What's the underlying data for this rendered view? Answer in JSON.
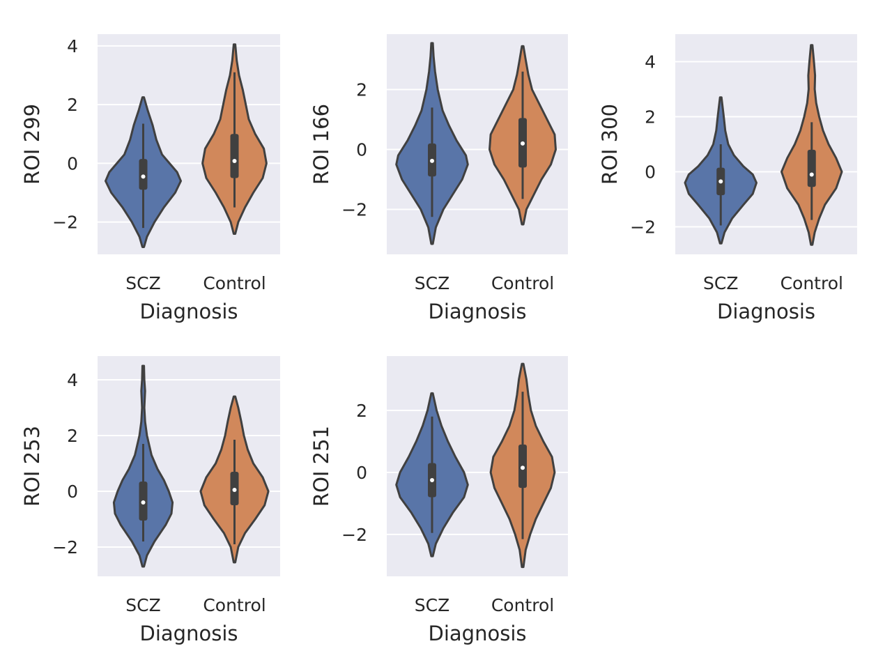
{
  "chart_data": [
    {
      "type": "violin",
      "ylabel": "ROI 299",
      "xlabel": "Diagnosis",
      "categories": [
        "SCZ",
        "Control"
      ],
      "yticks": [
        -2,
        0,
        2,
        4
      ],
      "ylim": [
        -3.1,
        4.4
      ],
      "grid": true,
      "colors": [
        "#5975a8",
        "#d1885b"
      ],
      "violins": [
        {
          "category": "SCZ",
          "min": -2.2,
          "q1": -0.9,
          "median": -0.45,
          "q3": 0.15,
          "max": 1.35,
          "range": [
            -2.85,
            2.25
          ],
          "profile": [
            [
              -2.85,
              0.02
            ],
            [
              -2.5,
              0.1
            ],
            [
              -2.0,
              0.3
            ],
            [
              -1.5,
              0.55
            ],
            [
              -1.0,
              0.85
            ],
            [
              -0.6,
              1.0
            ],
            [
              -0.3,
              0.9
            ],
            [
              0.0,
              0.7
            ],
            [
              0.3,
              0.5
            ],
            [
              0.8,
              0.35
            ],
            [
              1.3,
              0.25
            ],
            [
              1.8,
              0.12
            ],
            [
              2.25,
              0.02
            ]
          ]
        },
        {
          "category": "Control",
          "min": -1.5,
          "q1": -0.5,
          "median": 0.08,
          "q3": 1.0,
          "max": 3.1,
          "range": [
            -2.4,
            4.05
          ],
          "profile": [
            [
              -2.4,
              0.02
            ],
            [
              -2.0,
              0.1
            ],
            [
              -1.5,
              0.28
            ],
            [
              -1.0,
              0.5
            ],
            [
              -0.5,
              0.75
            ],
            [
              0.0,
              0.85
            ],
            [
              0.5,
              0.78
            ],
            [
              1.0,
              0.55
            ],
            [
              1.5,
              0.38
            ],
            [
              2.0,
              0.3
            ],
            [
              2.5,
              0.22
            ],
            [
              3.0,
              0.12
            ],
            [
              3.5,
              0.06
            ],
            [
              4.05,
              0.02
            ]
          ]
        }
      ]
    },
    {
      "type": "violin",
      "ylabel": "ROI 166",
      "xlabel": "Diagnosis",
      "categories": [
        "SCZ",
        "Control"
      ],
      "yticks": [
        -2,
        0,
        2
      ],
      "ylim": [
        -3.5,
        3.85
      ],
      "grid": true,
      "colors": [
        "#5975a8",
        "#d1885b"
      ],
      "violins": [
        {
          "category": "SCZ",
          "min": -2.25,
          "q1": -0.9,
          "median": -0.38,
          "q3": 0.2,
          "max": 1.4,
          "range": [
            -3.15,
            3.55
          ],
          "profile": [
            [
              -3.15,
              0.02
            ],
            [
              -2.6,
              0.1
            ],
            [
              -2.0,
              0.3
            ],
            [
              -1.5,
              0.55
            ],
            [
              -1.0,
              0.8
            ],
            [
              -0.5,
              0.95
            ],
            [
              -0.2,
              0.9
            ],
            [
              0.3,
              0.65
            ],
            [
              0.8,
              0.45
            ],
            [
              1.3,
              0.28
            ],
            [
              2.0,
              0.15
            ],
            [
              2.6,
              0.08
            ],
            [
              3.1,
              0.04
            ],
            [
              3.55,
              0.02
            ]
          ]
        },
        {
          "category": "Control",
          "min": -1.65,
          "q1": -0.6,
          "median": 0.2,
          "q3": 1.05,
          "max": 2.6,
          "range": [
            -2.5,
            3.45
          ],
          "profile": [
            [
              -2.5,
              0.02
            ],
            [
              -2.0,
              0.1
            ],
            [
              -1.5,
              0.3
            ],
            [
              -1.0,
              0.5
            ],
            [
              -0.5,
              0.75
            ],
            [
              0.0,
              0.88
            ],
            [
              0.5,
              0.85
            ],
            [
              1.0,
              0.65
            ],
            [
              1.5,
              0.45
            ],
            [
              2.0,
              0.25
            ],
            [
              2.5,
              0.15
            ],
            [
              3.0,
              0.08
            ],
            [
              3.45,
              0.02
            ]
          ]
        }
      ]
    },
    {
      "type": "violin",
      "ylabel": "ROI 300",
      "xlabel": "Diagnosis",
      "categories": [
        "SCZ",
        "Control"
      ],
      "yticks": [
        -2,
        0,
        2,
        4
      ],
      "ylim": [
        -3.0,
        5.0
      ],
      "grid": true,
      "colors": [
        "#5975a8",
        "#d1885b"
      ],
      "violins": [
        {
          "category": "SCZ",
          "min": -1.95,
          "q1": -0.85,
          "median": -0.35,
          "q3": 0.15,
          "max": 1.0,
          "range": [
            -2.6,
            2.7
          ],
          "profile": [
            [
              -2.6,
              0.02
            ],
            [
              -2.2,
              0.1
            ],
            [
              -1.7,
              0.3
            ],
            [
              -1.2,
              0.6
            ],
            [
              -0.8,
              0.85
            ],
            [
              -0.4,
              0.95
            ],
            [
              -0.1,
              0.85
            ],
            [
              0.2,
              0.6
            ],
            [
              0.6,
              0.35
            ],
            [
              1.0,
              0.2
            ],
            [
              1.5,
              0.12
            ],
            [
              2.0,
              0.08
            ],
            [
              2.7,
              0.02
            ]
          ]
        },
        {
          "category": "Control",
          "min": -1.75,
          "q1": -0.55,
          "median": -0.1,
          "q3": 0.8,
          "max": 1.8,
          "range": [
            -2.65,
            4.6
          ],
          "profile": [
            [
              -2.65,
              0.02
            ],
            [
              -2.2,
              0.08
            ],
            [
              -1.7,
              0.2
            ],
            [
              -1.2,
              0.35
            ],
            [
              -0.6,
              0.65
            ],
            [
              0.0,
              0.8
            ],
            [
              0.5,
              0.65
            ],
            [
              1.0,
              0.45
            ],
            [
              1.5,
              0.3
            ],
            [
              2.0,
              0.2
            ],
            [
              2.5,
              0.12
            ],
            [
              3.0,
              0.08
            ],
            [
              3.5,
              0.09
            ],
            [
              4.0,
              0.06
            ],
            [
              4.6,
              0.02
            ]
          ]
        }
      ]
    },
    {
      "type": "violin",
      "ylabel": "ROI 253",
      "xlabel": "Diagnosis",
      "categories": [
        "SCZ",
        "Control"
      ],
      "yticks": [
        -2,
        0,
        2,
        4
      ],
      "ylim": [
        -3.05,
        4.85
      ],
      "grid": true,
      "colors": [
        "#5975a8",
        "#d1885b"
      ],
      "violins": [
        {
          "category": "SCZ",
          "min": -1.8,
          "q1": -1.05,
          "median": -0.4,
          "q3": 0.35,
          "max": 1.7,
          "range": [
            -2.7,
            4.5
          ],
          "profile": [
            [
              -2.7,
              0.02
            ],
            [
              -2.3,
              0.1
            ],
            [
              -1.8,
              0.3
            ],
            [
              -1.2,
              0.6
            ],
            [
              -0.8,
              0.75
            ],
            [
              -0.4,
              0.78
            ],
            [
              0.0,
              0.68
            ],
            [
              0.4,
              0.55
            ],
            [
              0.8,
              0.38
            ],
            [
              1.3,
              0.22
            ],
            [
              2.0,
              0.1
            ],
            [
              2.5,
              0.05
            ],
            [
              3.0,
              0.03
            ],
            [
              3.6,
              0.05
            ],
            [
              4.0,
              0.03
            ],
            [
              4.5,
              0.02
            ]
          ]
        },
        {
          "category": "Control",
          "min": -1.9,
          "q1": -0.5,
          "median": 0.05,
          "q3": 0.7,
          "max": 1.85,
          "range": [
            -2.55,
            3.4
          ],
          "profile": [
            [
              -2.55,
              0.02
            ],
            [
              -2.0,
              0.1
            ],
            [
              -1.5,
              0.28
            ],
            [
              -1.0,
              0.55
            ],
            [
              -0.5,
              0.8
            ],
            [
              0.0,
              0.9
            ],
            [
              0.5,
              0.75
            ],
            [
              1.0,
              0.5
            ],
            [
              1.5,
              0.35
            ],
            [
              2.0,
              0.25
            ],
            [
              2.5,
              0.18
            ],
            [
              3.0,
              0.1
            ],
            [
              3.4,
              0.02
            ]
          ]
        }
      ]
    },
    {
      "type": "violin",
      "ylabel": "ROI 251",
      "xlabel": "Diagnosis",
      "categories": [
        "SCZ",
        "Control"
      ],
      "yticks": [
        -2,
        0,
        2
      ],
      "ylim": [
        -3.35,
        3.75
      ],
      "grid": true,
      "colors": [
        "#5975a8",
        "#d1885b"
      ],
      "violins": [
        {
          "category": "SCZ",
          "min": -1.95,
          "q1": -0.8,
          "median": -0.25,
          "q3": 0.3,
          "max": 1.8,
          "range": [
            -2.7,
            2.55
          ],
          "profile": [
            [
              -2.7,
              0.02
            ],
            [
              -2.3,
              0.1
            ],
            [
              -1.8,
              0.3
            ],
            [
              -1.3,
              0.55
            ],
            [
              -0.8,
              0.85
            ],
            [
              -0.4,
              0.95
            ],
            [
              0.0,
              0.85
            ],
            [
              0.5,
              0.62
            ],
            [
              1.0,
              0.42
            ],
            [
              1.5,
              0.25
            ],
            [
              2.0,
              0.12
            ],
            [
              2.55,
              0.02
            ]
          ]
        },
        {
          "category": "Control",
          "min": -2.15,
          "q1": -0.5,
          "median": 0.15,
          "q3": 0.9,
          "max": 2.6,
          "range": [
            -3.05,
            3.5
          ],
          "profile": [
            [
              -3.05,
              0.02
            ],
            [
              -2.5,
              0.08
            ],
            [
              -2.0,
              0.2
            ],
            [
              -1.5,
              0.35
            ],
            [
              -1.0,
              0.55
            ],
            [
              -0.5,
              0.75
            ],
            [
              0.0,
              0.85
            ],
            [
              0.5,
              0.78
            ],
            [
              1.0,
              0.55
            ],
            [
              1.5,
              0.35
            ],
            [
              2.0,
              0.22
            ],
            [
              2.5,
              0.15
            ],
            [
              3.0,
              0.1
            ],
            [
              3.5,
              0.02
            ]
          ]
        }
      ]
    }
  ]
}
